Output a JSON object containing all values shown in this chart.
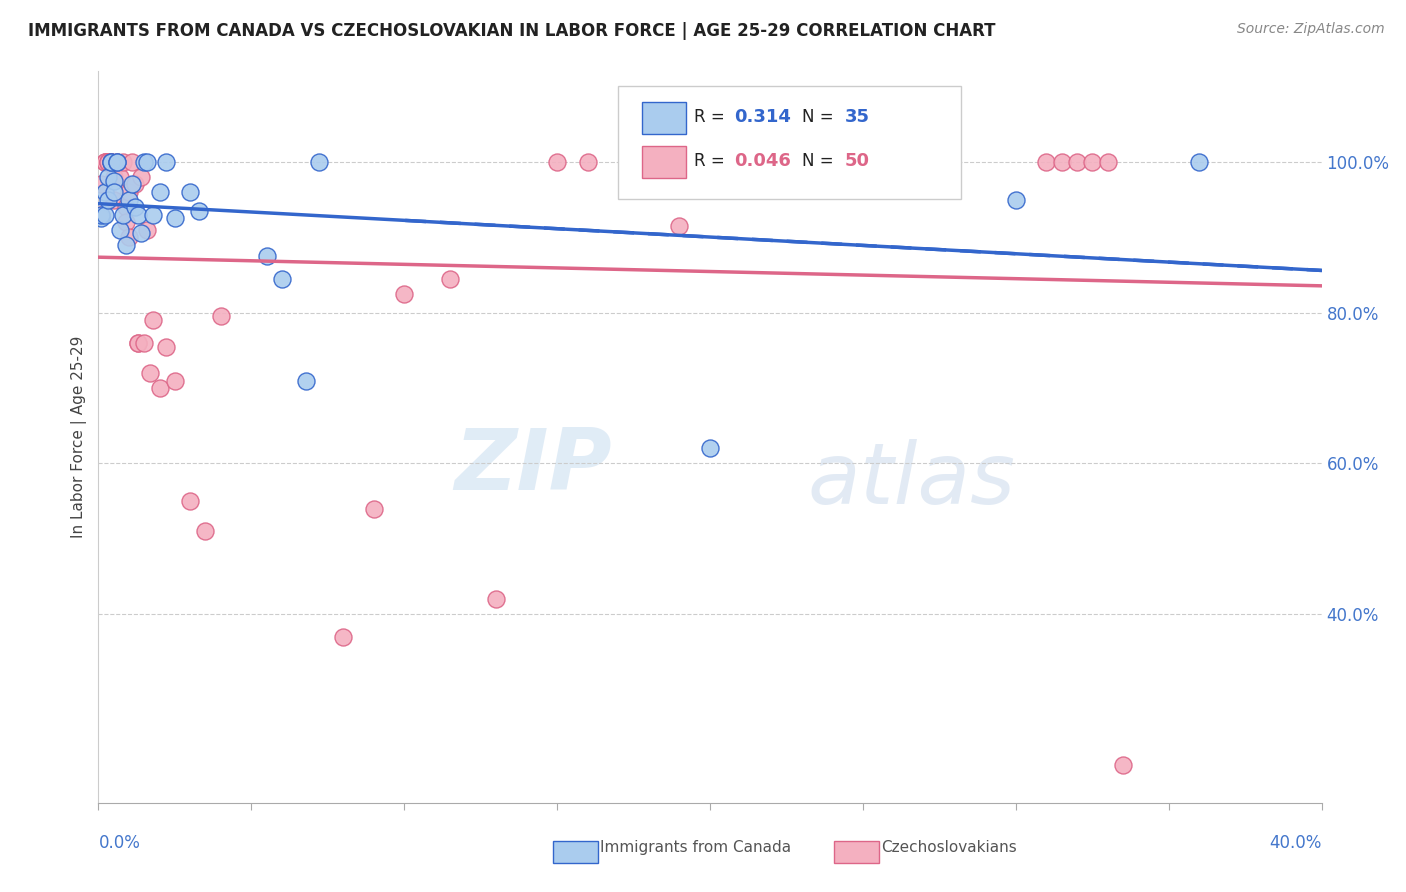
{
  "title": "IMMIGRANTS FROM CANADA VS CZECHOSLOVAKIAN IN LABOR FORCE | AGE 25-29 CORRELATION CHART",
  "source": "Source: ZipAtlas.com",
  "ylabel": "In Labor Force | Age 25-29",
  "right_yticks": [
    1.0,
    0.8,
    0.6,
    0.4
  ],
  "right_ytick_labels": [
    "100.0%",
    "80.0%",
    "60.0%",
    "40.0%"
  ],
  "title_fontsize": 13,
  "source_fontsize": 10,
  "legend_canada_R": "0.314",
  "legend_canada_N": "35",
  "legend_czech_R": "0.046",
  "legend_czech_N": "50",
  "canada_color": "#aaccee",
  "czech_color": "#f4b0c0",
  "canada_line_color": "#3366cc",
  "czech_line_color": "#dd6688",
  "watermark_zip": "ZIP",
  "watermark_atlas": "atlas",
  "canada_scatter_x": [
    0.001,
    0.001,
    0.002,
    0.002,
    0.003,
    0.003,
    0.004,
    0.004,
    0.005,
    0.005,
    0.006,
    0.006,
    0.007,
    0.008,
    0.009,
    0.01,
    0.011,
    0.012,
    0.013,
    0.014,
    0.015,
    0.016,
    0.018,
    0.02,
    0.022,
    0.025,
    0.03,
    0.033,
    0.055,
    0.06,
    0.068,
    0.072,
    0.2,
    0.3,
    0.36
  ],
  "canada_scatter_y": [
    0.925,
    0.93,
    0.96,
    0.93,
    0.98,
    0.95,
    1.0,
    1.0,
    0.975,
    0.96,
    1.0,
    1.0,
    0.91,
    0.93,
    0.89,
    0.95,
    0.97,
    0.94,
    0.93,
    0.905,
    1.0,
    1.0,
    0.93,
    0.96,
    1.0,
    0.925,
    0.96,
    0.935,
    0.875,
    0.845,
    0.71,
    1.0,
    0.62,
    0.95,
    1.0
  ],
  "czech_scatter_x": [
    0.001,
    0.001,
    0.002,
    0.002,
    0.002,
    0.003,
    0.003,
    0.003,
    0.004,
    0.004,
    0.005,
    0.005,
    0.006,
    0.007,
    0.008,
    0.009,
    0.009,
    0.01,
    0.01,
    0.011,
    0.012,
    0.013,
    0.013,
    0.014,
    0.015,
    0.016,
    0.017,
    0.018,
    0.02,
    0.022,
    0.025,
    0.03,
    0.035,
    0.04,
    0.08,
    0.09,
    0.1,
    0.115,
    0.13,
    0.15,
    0.16,
    0.19,
    0.22,
    0.26,
    0.31,
    0.315,
    0.32,
    0.325,
    0.33,
    0.335
  ],
  "czech_scatter_y": [
    0.93,
    0.97,
    1.0,
    1.0,
    1.0,
    1.0,
    1.0,
    1.0,
    1.0,
    1.0,
    0.98,
    0.95,
    1.0,
    0.98,
    1.0,
    0.94,
    0.92,
    0.9,
    0.96,
    1.0,
    0.97,
    0.76,
    0.76,
    0.98,
    0.76,
    0.91,
    0.72,
    0.79,
    0.7,
    0.755,
    0.71,
    0.55,
    0.51,
    0.795,
    0.37,
    0.54,
    0.825,
    0.845,
    0.42,
    1.0,
    1.0,
    0.915,
    1.0,
    1.0,
    1.0,
    1.0,
    1.0,
    1.0,
    1.0,
    0.2
  ],
  "xmin": 0.0,
  "xmax": 0.4,
  "ymin": 0.15,
  "ymax": 1.12,
  "grid_yticks": [
    1.0,
    0.8,
    0.6,
    0.4
  ]
}
